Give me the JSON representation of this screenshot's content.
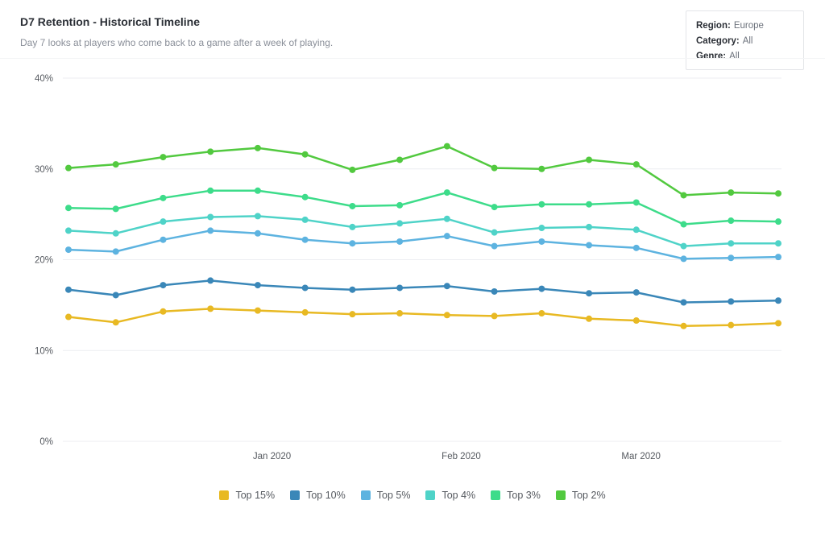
{
  "header": {
    "title": "D7 Retention - Historical Timeline",
    "subtitle": "Day 7 looks at players who come back to a game after a week of playing."
  },
  "filters": [
    {
      "label": "Region:",
      "value": "Europe"
    },
    {
      "label": "Category:",
      "value": "All"
    },
    {
      "label": "Genre:",
      "value": "All"
    }
  ],
  "chart_data": {
    "type": "line",
    "y_ticks": [
      "0%",
      "10%",
      "20%",
      "30%",
      "40%"
    ],
    "ylim": [
      0,
      40
    ],
    "x_ticks": [
      {
        "label": "Jan 2020",
        "at": 4.3
      },
      {
        "label": "Feb 2020",
        "at": 8.3
      },
      {
        "label": "Mar 2020",
        "at": 12.1
      }
    ],
    "grid": "horizontal",
    "legend_position": "bottom",
    "series": [
      {
        "name": "Top 15%",
        "color": "#e8b923",
        "values": [
          13.7,
          13.1,
          14.3,
          14.6,
          14.4,
          14.2,
          14.0,
          14.1,
          13.9,
          13.8,
          14.1,
          13.5,
          13.3,
          12.7,
          12.8,
          13.0
        ]
      },
      {
        "name": "Top 10%",
        "color": "#3a87b8",
        "values": [
          16.7,
          16.1,
          17.2,
          17.7,
          17.2,
          16.9,
          16.7,
          16.9,
          17.1,
          16.5,
          16.8,
          16.3,
          16.4,
          15.3,
          15.4,
          15.5
        ]
      },
      {
        "name": "Top 5%",
        "color": "#5db3e0",
        "values": [
          21.1,
          20.9,
          22.2,
          23.2,
          22.9,
          22.2,
          21.8,
          22.0,
          22.6,
          21.5,
          22.0,
          21.6,
          21.3,
          20.1,
          20.2,
          20.3
        ]
      },
      {
        "name": "Top 4%",
        "color": "#4fd3c8",
        "values": [
          23.2,
          22.9,
          24.2,
          24.7,
          24.8,
          24.4,
          23.6,
          24.0,
          24.5,
          23.0,
          23.5,
          23.6,
          23.3,
          21.5,
          21.8,
          21.8
        ]
      },
      {
        "name": "Top 3%",
        "color": "#3ddc8a",
        "values": [
          25.7,
          25.6,
          26.8,
          27.6,
          27.6,
          26.9,
          25.9,
          26.0,
          27.4,
          25.8,
          26.1,
          26.1,
          26.3,
          23.9,
          24.3,
          24.2
        ]
      },
      {
        "name": "Top 2%",
        "color": "#52c93f",
        "values": [
          30.1,
          30.5,
          31.3,
          31.9,
          32.3,
          31.6,
          29.9,
          31.0,
          32.5,
          30.1,
          30.0,
          31.0,
          30.5,
          27.1,
          27.4,
          27.3
        ]
      }
    ]
  }
}
